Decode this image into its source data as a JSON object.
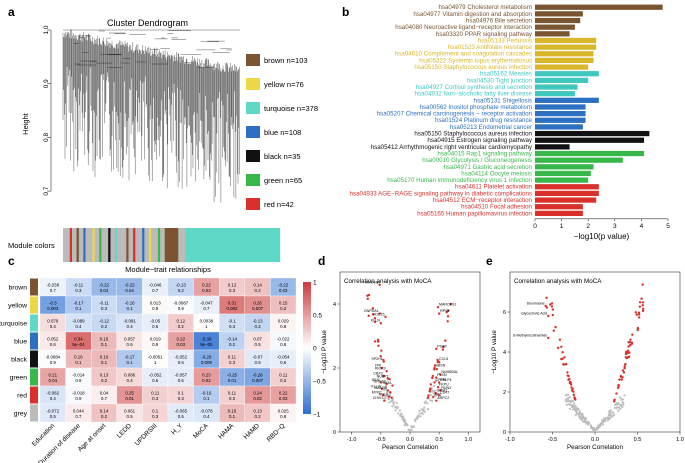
{
  "panel_letters": {
    "a": "a",
    "b": "b",
    "c": "c",
    "d": "d",
    "e": "e"
  },
  "chart_data": [
    {
      "panel": "a",
      "type": "other",
      "title": "Cluster Dendrogram",
      "ylabel": "Height",
      "yticks": [
        "1.0",
        "0.9",
        "0.8",
        "0.7"
      ],
      "ylim": [
        0.65,
        1.0
      ],
      "strip_label": "Module colors",
      "modules": [
        {
          "name": "brown",
          "label": "brown n=103",
          "color": "#7b5432"
        },
        {
          "name": "yellow",
          "label": "yellow n=76",
          "color": "#ecd746"
        },
        {
          "name": "turquoise",
          "label": "turquoise n=378",
          "color": "#5fd8c8"
        },
        {
          "name": "blue",
          "label": "blue n=108",
          "color": "#2d6fc0"
        },
        {
          "name": "black",
          "label": "black n=35",
          "color": "#111111"
        },
        {
          "name": "green",
          "label": "green n=65",
          "color": "#38b84a"
        },
        {
          "name": "red",
          "label": "red n=42",
          "color": "#d9302b"
        }
      ],
      "strip_segments": [
        [
          "#bbbbbb",
          3
        ],
        [
          "#d9302b",
          1
        ],
        [
          "#bbbbbb",
          2
        ],
        [
          "#7b5432",
          1
        ],
        [
          "#bbbbbb",
          2
        ],
        [
          "#2d6fc0",
          1
        ],
        [
          "#bbbbbb",
          3
        ],
        [
          "#ecd746",
          1
        ],
        [
          "#bbbbbb",
          2
        ],
        [
          "#38b84a",
          1
        ],
        [
          "#bbbbbb",
          3
        ],
        [
          "#111111",
          1
        ],
        [
          "#bbbbbb",
          2
        ],
        [
          "#5fd8c8",
          1
        ],
        [
          "#bbbbbb",
          4
        ],
        [
          "#7b5432",
          1
        ],
        [
          "#bbbbbb",
          2
        ],
        [
          "#d9302b",
          1
        ],
        [
          "#bbbbbb",
          3
        ],
        [
          "#2d6fc0",
          1
        ],
        [
          "#bbbbbb",
          2
        ],
        [
          "#ecd746",
          1
        ],
        [
          "#bbbbbb",
          3
        ],
        [
          "#38b84a",
          1
        ],
        [
          "#bbbbbb",
          2
        ],
        [
          "#7b5432",
          6
        ],
        [
          "#bbbbbb",
          3
        ],
        [
          "#5fd8c8",
          42
        ]
      ]
    },
    {
      "panel": "b",
      "type": "bar",
      "orientation": "horizontal",
      "xlabel": "−log10(p value)",
      "xlim": [
        0,
        5
      ],
      "xticks": [
        "0",
        "1",
        "2",
        "3",
        "4",
        "5"
      ],
      "categories": [
        "hsa04979 Cholesterol metabolism",
        "hsa04977 Vitamin digestion and absorption",
        "hsa04976 Bile secretion",
        "hsa04080 Neuroactive ligand−receptor interaction",
        "hsa03320 PPAR signaling pathway",
        "hsa05133 Pertussis",
        "hsa01523 Antifolate resistance",
        "hsa04610 Complement and coagulation cascades",
        "hsa05322 Systemic lupus erythematosus",
        "hsa05150 Staphylococcus aureus infection",
        "hsa05162 Measles",
        "hsa04530 Tight junction",
        "hsa04927 Cortisol synthesis and secretion",
        "hsa04932 Non−alcoholic fatty liver disease",
        "hsa05131 Shigellosis",
        "hsa00562 Inositol phosphate metabolism",
        "hsa05207 Chemical carcinogenesis − receptor activation",
        "hsa01524 Platinum drug resistance",
        "hsa05213 Endometrial cancer",
        "hsa05150 Staphylococcus aureus infection",
        "hsa04915 Estrogen signaling pathway",
        "hsa05412 Arrhythmogenic right ventricular cardiomyopathy",
        "hsa04015 Rap1 signaling pathway",
        "hsa00010 Glycolysis / Gluconeogenesis",
        "hsa04971 Gastric acid secretion",
        "hsa04114 Oocyte meiosis",
        "hsa05170 Human immunodeficiency virus 1 infection",
        "hsa04611 Platelet activation",
        "hsa04933 AGE−RAGE signaling pathway in diabetic complications",
        "hsa04512 ECM−receptor interaction",
        "hsa04510 Focal adhesion",
        "hsa05165 Human papillomavirus infection"
      ],
      "values": [
        4.8,
        1.8,
        1.7,
        1.5,
        1.3,
        2.3,
        2.3,
        2.2,
        2.2,
        2.0,
        2.4,
        2.0,
        1.6,
        1.5,
        2.4,
        1.9,
        1.9,
        1.9,
        1.8,
        4.3,
        4.1,
        1.3,
        4.1,
        3.3,
        2.2,
        2.1,
        2.0,
        2.4,
        2.4,
        2.3,
        1.8,
        1.8
      ],
      "group_colors": [
        "#7b5432",
        "#7b5432",
        "#7b5432",
        "#7b5432",
        "#7b5432",
        "#d9b62c",
        "#d9b62c",
        "#d9b62c",
        "#d9b62c",
        "#d9b62c",
        "#3fc7c0",
        "#3fc7c0",
        "#3fc7c0",
        "#3fc7c0",
        "#2d6fc0",
        "#2d6fc0",
        "#2d6fc0",
        "#2d6fc0",
        "#2d6fc0",
        "#111111",
        "#111111",
        "#111111",
        "#38b84a",
        "#38b84a",
        "#38b84a",
        "#38b84a",
        "#38b84a",
        "#d9302b",
        "#d9302b",
        "#d9302b",
        "#d9302b",
        "#d9302b"
      ],
      "label_colors": [
        "#7b5432",
        "#7b5432",
        "#7b5432",
        "#7b5432",
        "#7b5432",
        "#d9b62c",
        "#d9b62c",
        "#d9b62c",
        "#d9b62c",
        "#d9b62c",
        "#3fc7c0",
        "#3fc7c0",
        "#3fc7c0",
        "#3fc7c0",
        "#2d6fc0",
        "#2d6fc0",
        "#2d6fc0",
        "#2d6fc0",
        "#2d6fc0",
        "#111111",
        "#111111",
        "#111111",
        "#38b84a",
        "#38b84a",
        "#38b84a",
        "#38b84a",
        "#38b84a",
        "#d9302b",
        "#d9302b",
        "#d9302b",
        "#d9302b",
        "#d9302b"
      ]
    },
    {
      "panel": "c",
      "type": "heatmap",
      "title": "Module−trait relationships",
      "rows": [
        "brown",
        "yellow",
        "turquoise",
        "blue",
        "black",
        "green",
        "red",
        "grey"
      ],
      "row_colors": [
        "#7b5432",
        "#ecd746",
        "#5fd8c8",
        "#2d6fc0",
        "#111111",
        "#38b84a",
        "#d9302b",
        "#bbbbbb"
      ],
      "columns": [
        "Education",
        "Duration of disease",
        "Age at onset",
        "LEDD",
        "UPDRSIII",
        "H_Y",
        "MoCA",
        "HAMA",
        "HAMD",
        "RBD−Q"
      ],
      "colorbar_ticks": [
        "1",
        "0.5",
        "0",
        "−0.5",
        "−1"
      ],
      "zlim": [
        -1,
        1
      ],
      "r": [
        [
          -0.038,
          -0.11,
          -0.22,
          -0.22,
          -0.046,
          -0.13,
          0.22,
          0.12,
          0.14,
          -0.22
        ],
        [
          -0.3,
          -0.17,
          -0.11,
          -0.16,
          0.013,
          -0.0087,
          -0.047,
          0.31,
          0.26,
          0.15
        ],
        [
          0.079,
          -0.089,
          -0.12,
          -0.081,
          -0.05,
          0.12,
          0.0038,
          -0.1,
          -0.13,
          0.029
        ],
        [
          0.052,
          0.34,
          0.16,
          0.057,
          0.019,
          0.22,
          -0.39,
          -0.14,
          0.07,
          -0.022
        ],
        [
          -0.0084,
          0.16,
          0.16,
          -0.17,
          -0.0051,
          -0.052,
          -0.26,
          0.11,
          -0.07,
          -0.054
        ],
        [
          0.21,
          -0.014,
          0.13,
          0.086,
          -0.052,
          -0.057,
          0.23,
          -0.25,
          -0.28,
          0.11
        ],
        [
          -0.082,
          -0.018,
          0.04,
          0.25,
          0.11,
          0.1,
          -0.16,
          0.11,
          0.24,
          0.22
        ],
        [
          -0.072,
          0.044,
          0.14,
          0.061,
          0.1,
          -0.065,
          -0.078,
          0.16,
          0.13,
          0.025
        ]
      ],
      "p": [
        [
          "0.7",
          "0.3",
          "0.04",
          "0.04",
          "0.7",
          "0.2",
          "0.03",
          "0.3",
          "0.2",
          "0.03"
        ],
        [
          "0.003",
          "0.1",
          "0.3",
          "0.1",
          "0.9",
          "0.9",
          "0.7",
          "0.002",
          "0.007",
          "0.2"
        ],
        [
          "0.4",
          "0.4",
          "0.2",
          "0.4",
          "0.6",
          "0.2",
          "1",
          "0.3",
          "0.2",
          "0.8"
        ],
        [
          "0.6",
          "5e−04",
          "0.1",
          "0.6",
          "0.9",
          "0.03",
          "9e−05",
          "0.2",
          "0.5",
          "0.8"
        ],
        [
          "0.9",
          "0.1",
          "0.1",
          "0.1",
          "1",
          "0.6",
          "0.009",
          "0.3",
          "0.5",
          "0.6"
        ],
        [
          "0.04",
          "0.9",
          "0.2",
          "0.4",
          "0.6",
          "0.6",
          "0.02",
          "0.01",
          "0.007",
          "0.3"
        ],
        [
          "0.4",
          "0.9",
          "0.7",
          "0.01",
          "0.3",
          "0.3",
          "0.1",
          "0.3",
          "0.02",
          "0.03"
        ],
        [
          "0.5",
          "0.7",
          "0.2",
          "0.5",
          "0.3",
          "0.5",
          "0.4",
          "0.1",
          "0.2",
          "0.8"
        ]
      ]
    },
    {
      "panel": "d",
      "type": "scatter",
      "title": "Correlation analysis with MoCA",
      "xlabel": "Pearson Correlation",
      "ylabel": "−Log10 P value",
      "xlim": [
        -1.2,
        1.2
      ],
      "ylim": [
        0,
        5
      ],
      "xticks": [
        -1.0,
        -0.5,
        0.0,
        0.5,
        1.0
      ],
      "yticks": [
        0,
        2,
        4
      ],
      "labels": [
        {
          "text": "MYOM3",
          "x": -0.52,
          "y": 4.6
        },
        {
          "text": "GNPDA1",
          "x": -0.52,
          "y": 3.7
        },
        {
          "text": "KLLN",
          "x": -0.5,
          "y": 3.4
        },
        {
          "text": "HDC15",
          "x": -0.42,
          "y": 3.6
        },
        {
          "text": "MARCKS1",
          "x": 0.48,
          "y": 3.9
        },
        {
          "text": "RPS4",
          "x": 0.5,
          "y": 3.7
        },
        {
          "text": "PSAP",
          "x": 0.45,
          "y": 2.6
        },
        {
          "text": "SP2H1",
          "x": -0.45,
          "y": 2.2
        },
        {
          "text": "CCL5",
          "x": 0.48,
          "y": 2.2
        },
        {
          "text": "SBSN",
          "x": 0.42,
          "y": 2.0
        },
        {
          "text": "FRI",
          "x": -0.48,
          "y": 2.0
        },
        {
          "text": "RIOK3",
          "x": -0.4,
          "y": 1.9
        },
        {
          "text": "CBX3",
          "x": -0.45,
          "y": 1.75
        },
        {
          "text": "NUBP1",
          "x": -0.35,
          "y": 1.65
        },
        {
          "text": "NUMB2AL",
          "x": 0.52,
          "y": 1.8
        },
        {
          "text": "PLXN",
          "x": 0.45,
          "y": 1.7
        },
        {
          "text": "RPLP4",
          "x": 0.5,
          "y": 1.55
        },
        {
          "text": "IDH1",
          "x": -0.5,
          "y": 1.55
        },
        {
          "text": "GNG12",
          "x": -0.4,
          "y": 1.5
        },
        {
          "text": "NIDA",
          "x": -0.3,
          "y": 1.45
        },
        {
          "text": "CPPM",
          "x": 0.42,
          "y": 1.55
        },
        {
          "text": "FKPU",
          "x": 0.48,
          "y": 1.4
        },
        {
          "text": "RUNX",
          "x": 0.52,
          "y": 1.3
        },
        {
          "text": "KLLIA",
          "x": -0.48,
          "y": 1.35
        },
        {
          "text": "MAN2B",
          "x": -0.38,
          "y": 1.3
        },
        {
          "text": "GRIA2",
          "x": 0.44,
          "y": 1.22
        },
        {
          "text": "CD47",
          "x": 0.5,
          "y": 1.15
        },
        {
          "text": "MYPC",
          "x": -0.46,
          "y": 1.15
        },
        {
          "text": "AP1",
          "x": 0.4,
          "y": 1.1
        },
        {
          "text": "NOL9",
          "x": -0.36,
          "y": 1.1
        },
        {
          "text": "ARPC2",
          "x": 0.45,
          "y": 0.98
        },
        {
          "text": "CHIV1",
          "x": -0.44,
          "y": 0.98
        }
      ]
    },
    {
      "panel": "e",
      "type": "scatter",
      "title": "Correlation analysis with MoCA",
      "xlabel": "Pearson Correlation",
      "ylabel": "−Log10 P value",
      "xlim": [
        -1.0,
        1.0
      ],
      "ylim": [
        0,
        8
      ],
      "xticks": [
        -1.0,
        -0.5,
        0.0,
        0.5,
        1.0
      ],
      "yticks": [
        0,
        2,
        4,
        6
      ],
      "labels": [
        {
          "text": "Dioxindone",
          "x": -0.58,
          "y": 6.3
        },
        {
          "text": "Glycocholic Acid",
          "x": -0.55,
          "y": 5.8
        },
        {
          "text": "6-Methylnicotinamide",
          "x": -0.55,
          "y": 4.7
        }
      ]
    }
  ]
}
